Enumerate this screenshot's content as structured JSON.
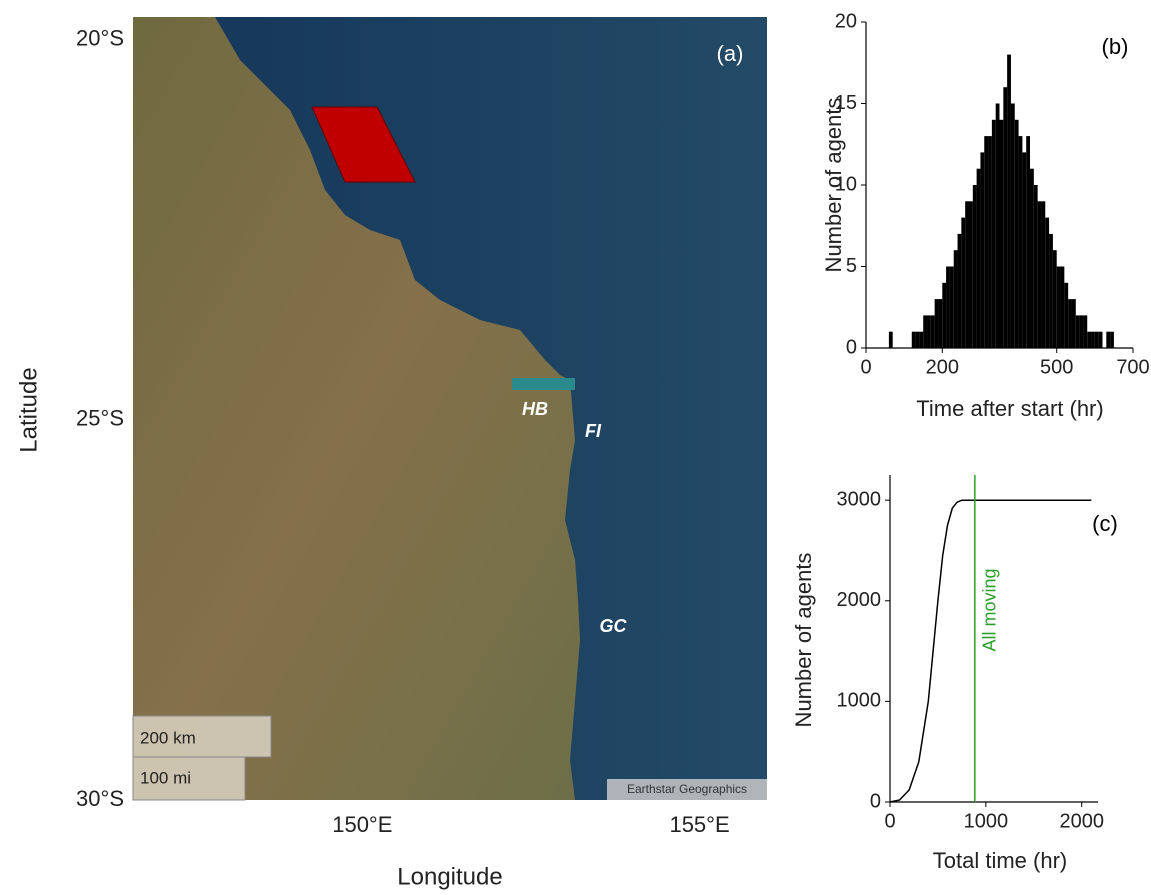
{
  "chart_data": [
    {
      "type": "map",
      "panel_label": "(a)",
      "xlabel": "Longitude",
      "ylabel": "Latitude",
      "xlim": [
        146.6,
        156
      ],
      "ylim": [
        -30,
        -19.7
      ],
      "xticks": [
        {
          "value": 150,
          "label": "150°E"
        },
        {
          "value": 155,
          "label": "155°E"
        }
      ],
      "yticks": [
        {
          "value": -20,
          "label": "20°S"
        },
        {
          "value": -25,
          "label": "25°S"
        },
        {
          "value": -30,
          "label": "30°S"
        }
      ],
      "place_labels": [
        "HB",
        "FI",
        "GC"
      ],
      "scale_bar_labels": [
        "200 km",
        "100 mi"
      ],
      "attribution": "Earthstar Geographics"
    },
    {
      "type": "histogram",
      "panel_label": "(b)",
      "xlabel": "Time after start (hr)",
      "ylabel": "Number of agents",
      "bins": [
        60,
        70,
        80,
        90,
        100,
        110,
        120,
        130,
        140,
        150,
        160,
        170,
        180,
        190,
        200,
        210,
        220,
        230,
        240,
        250,
        260,
        270,
        280,
        290,
        300,
        310,
        320,
        330,
        340,
        350,
        360,
        370,
        380,
        390,
        400,
        410,
        420,
        430,
        440,
        450,
        460,
        470,
        480,
        490,
        500,
        510,
        520,
        530,
        540,
        550,
        560,
        570,
        580,
        590,
        600,
        610,
        620,
        630,
        640,
        650,
        660
      ],
      "counts": [
        1,
        0,
        0,
        0,
        0,
        0,
        1,
        1,
        1,
        2,
        2,
        2,
        3,
        3,
        4,
        5,
        5,
        6,
        7,
        8,
        9,
        9,
        10,
        11,
        12,
        13,
        13,
        14,
        15,
        14,
        16,
        18,
        15,
        14,
        13,
        12,
        13,
        11,
        10,
        9,
        9,
        8,
        7,
        6,
        5,
        5,
        4,
        3,
        3,
        2,
        2,
        2,
        1,
        1,
        1,
        1,
        0,
        1,
        1,
        0
      ],
      "color": "#000000",
      "xlim": [
        0,
        700
      ],
      "ylim": [
        0,
        20
      ],
      "xticks": [
        0,
        200,
        500,
        700
      ],
      "yticks": [
        0,
        5,
        10,
        15,
        20
      ]
    },
    {
      "type": "line",
      "panel_label": "(c)",
      "xlabel": "Total time (hr)",
      "ylabel": "Number of agents",
      "x": [
        0,
        100,
        200,
        300,
        400,
        450,
        500,
        550,
        600,
        650,
        700,
        750,
        2100
      ],
      "values": [
        0,
        20,
        120,
        400,
        1000,
        1500,
        2000,
        2450,
        2750,
        2920,
        2980,
        3000,
        3000
      ],
      "color": "#000000",
      "annotation": {
        "x": 885,
        "label": "All moving",
        "color": "#2ca02c"
      },
      "xlim": [
        0,
        2170
      ],
      "ylim": [
        0,
        3250
      ],
      "xticks": [
        0,
        1000,
        2000
      ],
      "yticks": [
        0,
        1000,
        2000,
        3000
      ]
    }
  ]
}
